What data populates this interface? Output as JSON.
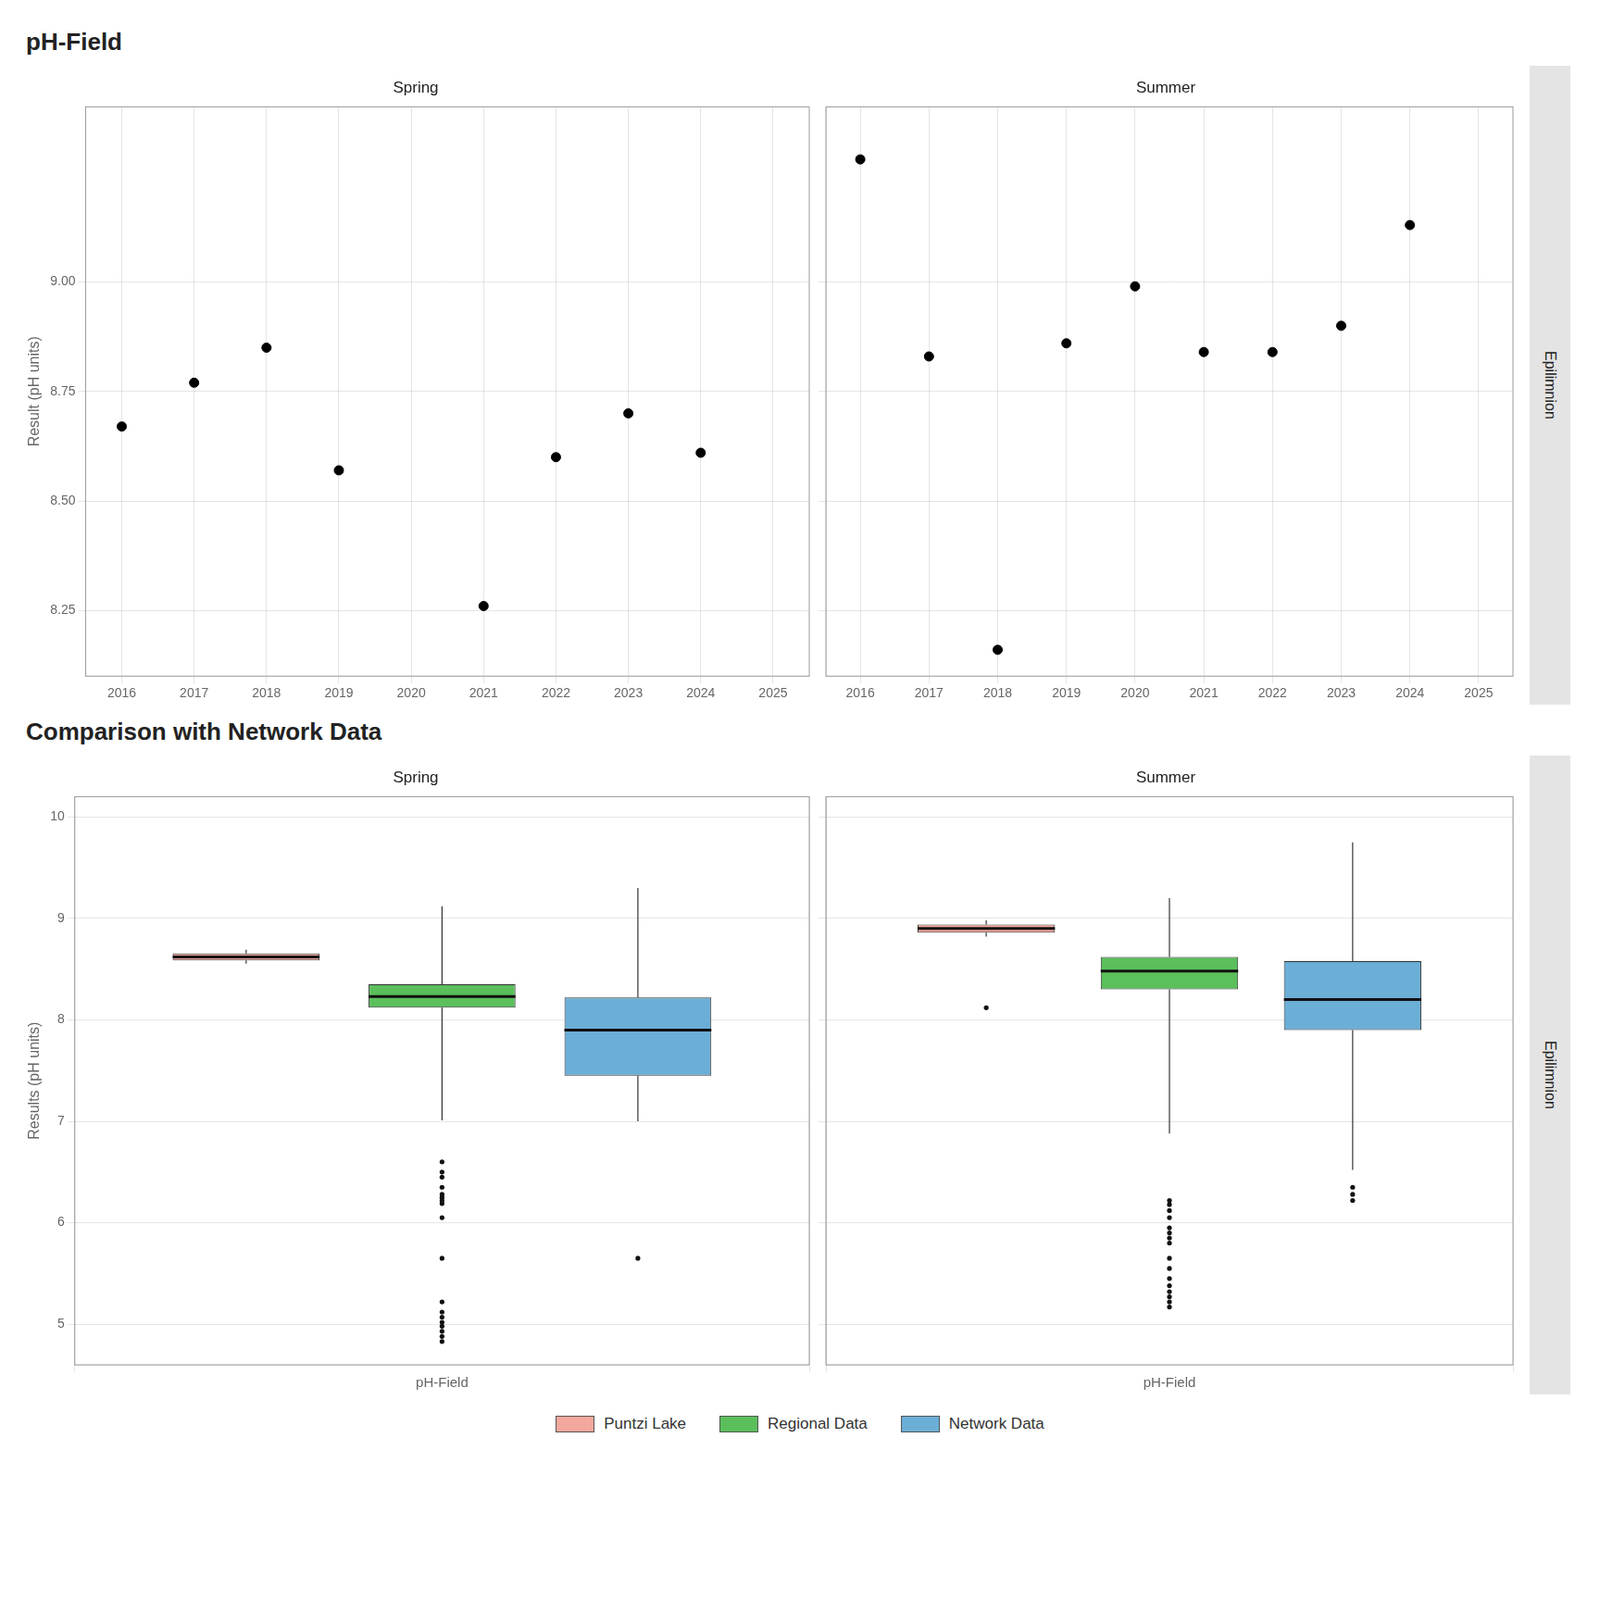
{
  "chart_data": [
    {
      "type": "scatter",
      "title": "pH-Field",
      "ylabel": "Result (pH units)",
      "annotation": "Epilimnion",
      "color": "black",
      "grid": true,
      "xlim": [
        2015.5,
        2025.5
      ],
      "xticks": [
        2016,
        2017,
        2018,
        2019,
        2020,
        2021,
        2022,
        2023,
        2024,
        2025
      ],
      "ylim": [
        8.1,
        9.4
      ],
      "yticks": [
        8.25,
        {
          "value": 8.5,
          "label": "8.50"
        },
        8.75,
        {
          "value": 9,
          "label": "9.00"
        }
      ],
      "facets": [
        {
          "title": "Spring",
          "x": [
            2016,
            2017,
            2018,
            2019,
            2021,
            2022,
            2023,
            2024
          ],
          "values": [
            8.67,
            8.77,
            8.85,
            8.57,
            8.26,
            8.6,
            8.7,
            8.61
          ]
        },
        {
          "title": "Summer",
          "tick_labels": "x",
          "x": [
            2016,
            2017,
            2018,
            2019,
            2020,
            2021,
            2022,
            2023,
            2024
          ],
          "values": [
            9.28,
            8.83,
            8.16,
            8.86,
            8.99,
            8.84,
            8.84,
            8.9,
            9.13
          ]
        }
      ]
    },
    {
      "type": "box",
      "title": "Comparison with Network Data",
      "ylabel": "Results (pH units)",
      "annotation": "Epilimnion",
      "grid": true,
      "legend": "bottom",
      "categories": [
        "pH-Field"
      ],
      "ylim": [
        4.6,
        10.2
      ],
      "yticks": [
        5,
        6,
        7,
        8,
        9,
        10
      ],
      "series": [
        {
          "name": "Puntzi Lake",
          "color": "#F4A79D"
        },
        {
          "name": "Regional Data",
          "color": "#5BBF5B"
        },
        {
          "name": "Network Data",
          "color": "#6BAED6"
        }
      ],
      "facets": [
        {
          "title": "Spring",
          "boxes": [
            {
              "median": 8.62,
              "q1": 8.585,
              "q3": 8.655,
              "whislo": 8.555,
              "whishi": 8.69,
              "fliers": []
            },
            {
              "median": 8.23,
              "q1": 8.12,
              "q3": 8.35,
              "whislo": 7.01,
              "whishi": 9.12,
              "fliers": [
                6.6,
                6.5,
                6.45,
                6.35,
                6.28,
                6.25,
                6.22,
                6.19,
                6.05,
                5.65,
                5.22,
                5.12,
                5.07,
                5.02,
                4.98,
                4.93,
                4.88,
                4.83
              ]
            },
            {
              "median": 7.9,
              "q1": 7.45,
              "q3": 8.22,
              "whislo": 7.0,
              "whishi": 9.3,
              "fliers": [
                5.65
              ]
            }
          ]
        },
        {
          "title": "Summer",
          "tick_labels": "x",
          "boxes": [
            {
              "median": 8.9,
              "q1": 8.86,
              "q3": 8.94,
              "whislo": 8.82,
              "whishi": 8.98,
              "fliers": [
                8.12
              ]
            },
            {
              "median": 8.48,
              "q1": 8.3,
              "q3": 8.62,
              "whislo": 6.88,
              "whishi": 9.2,
              "fliers": [
                6.22,
                6.18,
                6.12,
                6.05,
                5.95,
                5.9,
                5.85,
                5.8,
                5.65,
                5.55,
                5.45,
                5.38,
                5.32,
                5.27,
                5.22,
                5.17
              ]
            },
            {
              "median": 8.2,
              "q1": 7.9,
              "q3": 8.58,
              "whislo": 6.52,
              "whishi": 9.75,
              "fliers": [
                6.35,
                6.28,
                6.22
              ]
            }
          ]
        }
      ]
    }
  ]
}
